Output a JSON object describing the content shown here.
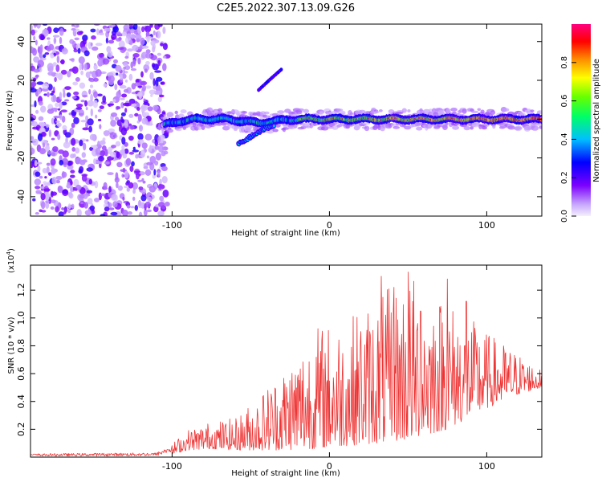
{
  "title": "C2E5.2022.307.13.09.G26",
  "chart_data": [
    {
      "type": "heatmap",
      "xlabel": "Height of straight line (km)",
      "ylabel": "Frequency (Hz)",
      "xlim": [
        -190,
        135
      ],
      "ylim": [
        -50,
        49
      ],
      "xticks": [
        -100,
        0,
        100
      ],
      "yticks": [
        -40,
        -20,
        0,
        20,
        40
      ],
      "colorbar": {
        "label": "Normalized spectral amplitude",
        "range": [
          0.0,
          1.0
        ],
        "ticks": [
          "0.0",
          "0.2",
          "0.4",
          "0.6",
          "0.8"
        ],
        "colormap": [
          "#f4f0fb",
          "#7b00ff",
          "#0000ff",
          "#00bfff",
          "#00ff66",
          "#66ff00",
          "#ffff00",
          "#ff8800",
          "#ff0000",
          "#ff007f"
        ]
      },
      "features": {
        "noise_region_x": [
          -190,
          -103
        ],
        "main_trace": [
          {
            "x": -105,
            "y": -3
          },
          {
            "x": -95,
            "y": -1
          },
          {
            "x": -85,
            "y": 0
          },
          {
            "x": -75,
            "y": 0
          },
          {
            "x": -65,
            "y": 0
          },
          {
            "x": -55,
            "y": -1
          },
          {
            "x": -45,
            "y": -2
          },
          {
            "x": -35,
            "y": -1
          },
          {
            "x": -20,
            "y": 0
          },
          {
            "x": 0,
            "y": 0
          },
          {
            "x": 30,
            "y": 0
          },
          {
            "x": 60,
            "y": 0
          },
          {
            "x": 100,
            "y": 0
          },
          {
            "x": 135,
            "y": 0
          }
        ],
        "lower_branch": [
          {
            "x": -58,
            "y": -13
          },
          {
            "x": -50,
            "y": -9
          },
          {
            "x": -42,
            "y": -5
          },
          {
            "x": -35,
            "y": -3
          }
        ],
        "upper_branch": [
          {
            "x": -45,
            "y": 15
          },
          {
            "x": -37,
            "y": 21
          },
          {
            "x": -30,
            "y": 26
          }
        ]
      }
    },
    {
      "type": "line",
      "xlabel": "Height of straight line (km)",
      "ylabel": "SNR (10 * v/v)",
      "multiplier": "(x10",
      "multiplier_exp": "4",
      "multiplier_close": ")",
      "xlim": [
        -190,
        135
      ],
      "ylim": [
        0,
        1.38
      ],
      "xticks": [
        -100,
        0,
        100
      ],
      "yticks": [
        "0.2",
        "0.4",
        "0.6",
        "0.8",
        "1.0",
        "1.2"
      ],
      "series": [
        {
          "color": "#ee3333",
          "envelope": [
            {
              "x": -190,
              "low": 0.0,
              "high": 0.03
            },
            {
              "x": -110,
              "low": 0.0,
              "high": 0.04
            },
            {
              "x": -100,
              "low": 0.02,
              "high": 0.1
            },
            {
              "x": -90,
              "low": 0.05,
              "high": 0.2
            },
            {
              "x": -75,
              "low": 0.06,
              "high": 0.26
            },
            {
              "x": -60,
              "low": 0.05,
              "high": 0.28
            },
            {
              "x": -45,
              "low": 0.05,
              "high": 0.45
            },
            {
              "x": -30,
              "low": 0.05,
              "high": 0.65
            },
            {
              "x": -10,
              "low": 0.06,
              "high": 0.95
            },
            {
              "x": 10,
              "low": 0.08,
              "high": 1.0
            },
            {
              "x": 30,
              "low": 0.1,
              "high": 1.15
            },
            {
              "x": 50,
              "low": 0.12,
              "high": 1.33
            },
            {
              "x": 75,
              "low": 0.2,
              "high": 1.15
            },
            {
              "x": 100,
              "low": 0.35,
              "high": 0.9
            },
            {
              "x": 120,
              "low": 0.45,
              "high": 0.75
            },
            {
              "x": 135,
              "low": 0.5,
              "high": 0.62
            }
          ],
          "peaks": [
            {
              "x": 33,
              "y": 1.3
            },
            {
              "x": 41,
              "y": 1.22
            },
            {
              "x": 50,
              "y": 1.33
            },
            {
              "x": 58,
              "y": 1.05
            },
            {
              "x": 75,
              "y": 1.28
            },
            {
              "x": 87,
              "y": 1.12
            }
          ]
        }
      ]
    }
  ]
}
